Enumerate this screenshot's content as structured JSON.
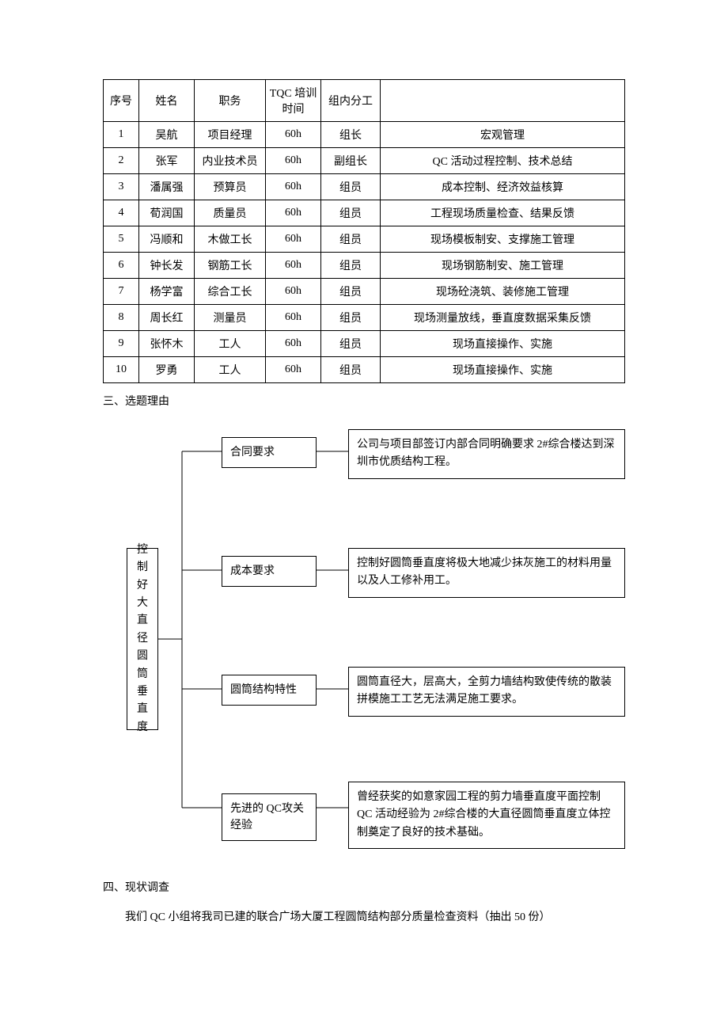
{
  "table": {
    "headers": {
      "no": "序号",
      "name": "姓名",
      "role": "职务",
      "tqc": "TQC 培训时间",
      "div": "组内分工",
      "desc": ""
    },
    "rows": [
      {
        "no": "1",
        "name": "吴航",
        "role": "项目经理",
        "tqc": "60h",
        "div": "组长",
        "desc": "宏观管理"
      },
      {
        "no": "2",
        "name": "张军",
        "role": "内业技术员",
        "tqc": "60h",
        "div": "副组长",
        "desc": "QC 活动过程控制、技术总结"
      },
      {
        "no": "3",
        "name": "潘属强",
        "role": "预算员",
        "tqc": "60h",
        "div": "组员",
        "desc": "成本控制、经济效益核算"
      },
      {
        "no": "4",
        "name": "荀润国",
        "role": "质量员",
        "tqc": "60h",
        "div": "组员",
        "desc": "工程现场质量检查、结果反馈"
      },
      {
        "no": "5",
        "name": "冯顺和",
        "role": "木做工长",
        "tqc": "60h",
        "div": "组员",
        "desc": "现场模板制安、支撑施工管理"
      },
      {
        "no": "6",
        "name": "钟长发",
        "role": "钢筋工长",
        "tqc": "60h",
        "div": "组员",
        "desc": "现场钢筋制安、施工管理"
      },
      {
        "no": "7",
        "name": "杨学富",
        "role": "综合工长",
        "tqc": "60h",
        "div": "组员",
        "desc": "现场砼浇筑、装修施工管理"
      },
      {
        "no": "8",
        "name": "周长红",
        "role": "测量员",
        "tqc": "60h",
        "div": "组员",
        "desc": "现场测量放线，垂直度数据采集反馈"
      },
      {
        "no": "9",
        "name": "张怀木",
        "role": "工人",
        "tqc": "60h",
        "div": "组员",
        "desc": "现场直接操作、实施"
      },
      {
        "no": "10",
        "name": "罗勇",
        "role": "工人",
        "tqc": "60h",
        "div": "组员",
        "desc": "现场直接操作、实施"
      }
    ]
  },
  "section3_title": "三、选题理由",
  "diagram": {
    "root": "控制好大直径圆筒垂直度",
    "branches": [
      {
        "mid": "合同要求",
        "desc": "公司与项目部签订内部合同明确要求 2#综合楼达到深圳市优质结构工程。",
        "midTop": 20,
        "descTop": 10
      },
      {
        "mid": "成本要求",
        "desc": "控制好圆筒垂直度将极大地减少抹灰施工的材料用量以及人工修补用工。",
        "midTop": 170,
        "descTop": 160
      },
      {
        "mid": "圆筒结构特性",
        "desc": "圆筒直径大，层高大，全剪力墙结构致使传统的散装拼模施工工艺无法满足施工要求。",
        "midTop": 320,
        "descTop": 310
      },
      {
        "mid": "先进的 QC攻关经验",
        "desc": "曾经获奖的如意家园工程的剪力墙垂直度平面控制 QC 活动经验为 2#综合楼的大直径圆筒垂直度立体控制奠定了良好的技术基础。",
        "midTop": 470,
        "descTop": 455
      }
    ],
    "layout": {
      "rootX": 70,
      "rootCY": 275,
      "branchX": 100,
      "midLeft": 150,
      "descLeft": 310,
      "midRight": 270
    }
  },
  "section4_title": "四、现状调查",
  "section4_text": "我们 QC 小组将我司已建的联合广场大厦工程圆筒结构部分质量检查资料（抽出 50 份）"
}
